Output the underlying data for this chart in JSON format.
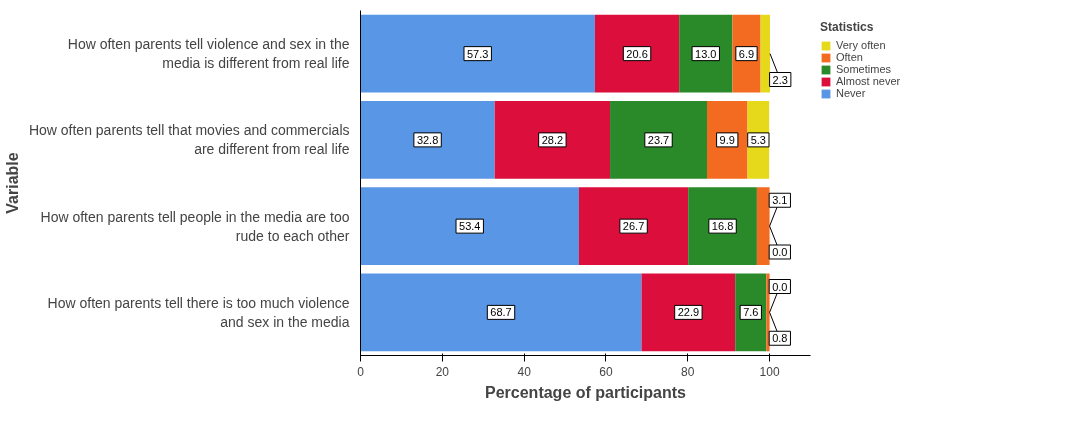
{
  "chart_data": {
    "type": "bar",
    "orientation": "horizontal",
    "stacked": true,
    "xlabel": "Percentage of participants",
    "ylabel": "Variable",
    "legend_title": "Statistics",
    "legend": "top right",
    "grid": false,
    "categories": [
      "How often parents tell violence and sex in the media is different from real life",
      "How often parents tell that movies and commercials are different from real life",
      "How often parents tell people in the media are too rude to each other",
      "How often parents tell there is too much violence and sex in the media"
    ],
    "xlim": [
      0,
      110
    ],
    "xticks": [
      0,
      20,
      40,
      60,
      80,
      100
    ],
    "series": [
      {
        "name": "Never",
        "color": "#5a96e6",
        "values": [
          57.3,
          32.8,
          53.4,
          68.7
        ],
        "value_labels": [
          "57.3",
          "32.8",
          "53.4",
          "68.7"
        ]
      },
      {
        "name": "Almost never",
        "color": "#dc0f3c",
        "values": [
          20.6,
          28.2,
          26.7,
          22.9
        ],
        "value_labels": [
          "20.6",
          "28.2",
          "26.7",
          "22.9"
        ]
      },
      {
        "name": "Sometimes",
        "color": "#2a8a2a",
        "values": [
          13.0,
          23.7,
          16.8,
          7.6
        ],
        "value_labels": [
          "13.0",
          "23.7",
          "16.8",
          "7.6"
        ]
      },
      {
        "name": "Often",
        "color": "#f26b21",
        "values": [
          6.9,
          9.9,
          3.1,
          0.8
        ],
        "value_labels": [
          "6.9",
          "9.9",
          "3.1",
          "0.8"
        ]
      },
      {
        "name": "Very often",
        "color": "#e6d81a",
        "values": [
          2.3,
          5.3,
          0.0,
          0.0
        ],
        "value_labels": [
          "2.3",
          "5.3",
          "0.0",
          "0.0"
        ]
      }
    ]
  }
}
